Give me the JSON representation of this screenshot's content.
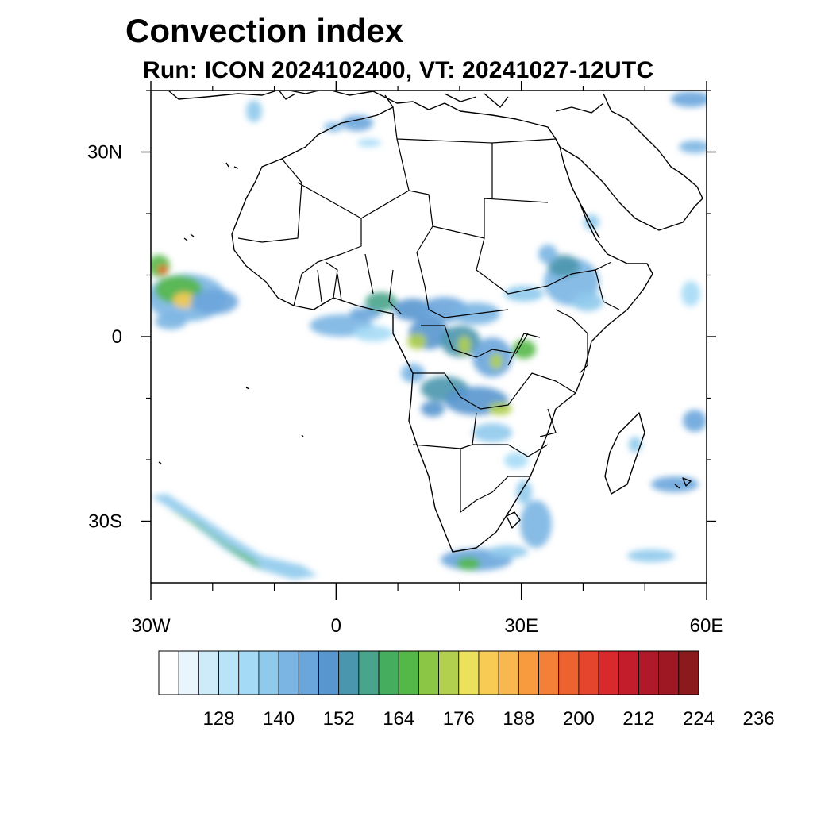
{
  "header": {
    "title": "Convection index",
    "subtitle": "Run: ICON 2024102400,  VT: 20241027-12UTC"
  },
  "map": {
    "projection": "equirectangular",
    "lon_range": [
      -30,
      60
    ],
    "lat_range": [
      -40,
      40
    ],
    "lat_ticks": [
      {
        "value": 30,
        "label": "30N"
      },
      {
        "value": 0,
        "label": "0"
      },
      {
        "value": -30,
        "label": "30S"
      }
    ],
    "lon_ticks": [
      {
        "value": -30,
        "label": "30W"
      },
      {
        "value": 0,
        "label": "0"
      },
      {
        "value": 30,
        "label": "30E"
      },
      {
        "value": 60,
        "label": "60E"
      }
    ]
  },
  "colorbar": {
    "colors": [
      "#ffffff",
      "#e8f5fc",
      "#cdebf9",
      "#b9e3f7",
      "#a5daf6",
      "#8fcaec",
      "#7ab5e3",
      "#6aa5dc",
      "#5796cf",
      "#4a96ae",
      "#48a48a",
      "#44ad5e",
      "#54b848",
      "#8cc645",
      "#b2d04d",
      "#ece15a",
      "#f8cb55",
      "#f8b84f",
      "#f79b3e",
      "#f47f37",
      "#ee6230",
      "#e6452d",
      "#d82a2c",
      "#c31d2c",
      "#b01a28",
      "#9e1823",
      "#8b1a1d"
    ],
    "labels": [
      "128",
      "140",
      "152",
      "164",
      "176",
      "188",
      "200",
      "212",
      "224",
      "236"
    ]
  }
}
